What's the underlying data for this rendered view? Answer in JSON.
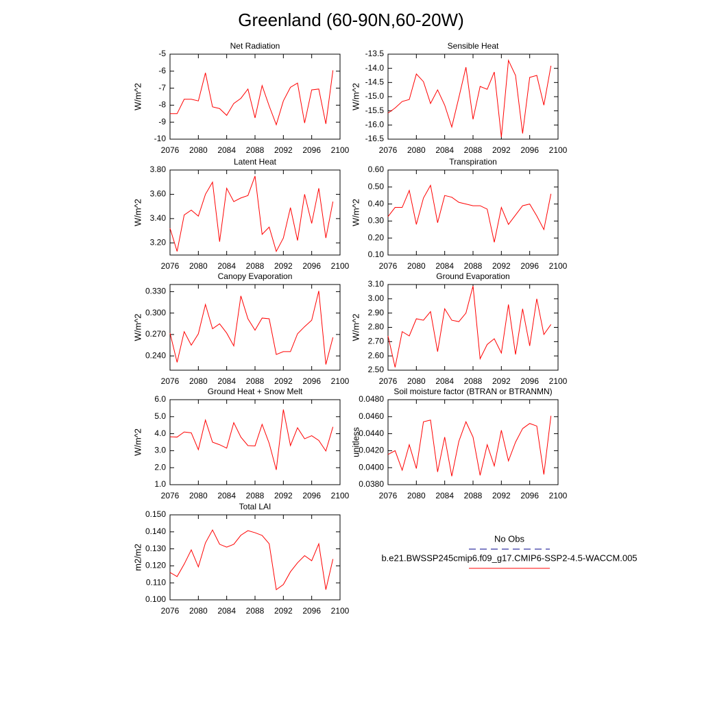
{
  "title": "Greenland (60-90N,60-20W)",
  "legend": [
    {
      "name": "No Obs",
      "color": "#00008b",
      "dashed": true
    },
    {
      "name": "b.e21.BWSSP245cmip6.f09_g17.CMIP6-SSP2-4.5-WACCM.005",
      "color": "#ff0000",
      "dashed": false
    }
  ],
  "chart_data": [
    {
      "type": "line",
      "title": "Net Radiation",
      "ylabel": "W/m^2",
      "color": "#ff0000",
      "x": [
        2076,
        2077,
        2078,
        2079,
        2080,
        2081,
        2082,
        2083,
        2084,
        2085,
        2086,
        2087,
        2088,
        2089,
        2090,
        2091,
        2092,
        2093,
        2094,
        2095,
        2096,
        2097,
        2098,
        2099
      ],
      "values": [
        -8.5,
        -8.5,
        -7.65,
        -7.65,
        -7.75,
        -6.1,
        -8.1,
        -8.2,
        -8.6,
        -7.9,
        -7.6,
        -7.05,
        -8.75,
        -6.85,
        -8.05,
        -9.15,
        -7.75,
        -6.95,
        -6.7,
        -9.05,
        -7.1,
        -7.05,
        -9.1,
        -5.95
      ],
      "xlim": [
        2076,
        2100
      ],
      "xticks": [
        2076,
        2080,
        2084,
        2088,
        2092,
        2096,
        2100
      ],
      "ylim": [
        -10,
        -5
      ],
      "yticks": [
        -10,
        -9,
        -8,
        -7,
        -6,
        -5
      ]
    },
    {
      "type": "line",
      "title": "Sensible Heat",
      "ylabel": "W/m^2",
      "color": "#ff0000",
      "x": [
        2076,
        2077,
        2078,
        2079,
        2080,
        2081,
        2082,
        2083,
        2084,
        2085,
        2086,
        2087,
        2088,
        2089,
        2090,
        2091,
        2092,
        2093,
        2094,
        2095,
        2096,
        2097,
        2098,
        2099
      ],
      "values": [
        -15.58,
        -15.4,
        -15.17,
        -15.1,
        -14.2,
        -14.47,
        -15.24,
        -14.76,
        -15.3,
        -16.07,
        -15.03,
        -13.96,
        -15.8,
        -14.64,
        -14.74,
        -14.13,
        -16.43,
        -13.72,
        -14.25,
        -16.3,
        -14.32,
        -14.25,
        -15.3,
        -13.91
      ],
      "xlim": [
        2076,
        2100
      ],
      "xticks": [
        2076,
        2080,
        2084,
        2088,
        2092,
        2096,
        2100
      ],
      "ylim": [
        -16.5,
        -13.5
      ],
      "yticks": [
        {
          "value": -16.5,
          "label": "-16.5"
        },
        {
          "value": -16,
          "label": "-16.0"
        },
        {
          "value": -15.5,
          "label": "-15.5"
        },
        {
          "value": -15,
          "label": "-15.0"
        },
        {
          "value": -14.5,
          "label": "-14.5"
        },
        {
          "value": -14,
          "label": "-14.0"
        },
        {
          "value": -13.5,
          "label": "-13.5"
        }
      ]
    },
    {
      "type": "line",
      "title": "Latent Heat",
      "ylabel": "W/m^2",
      "color": "#ff0000",
      "x": [
        2076,
        2077,
        2078,
        2079,
        2080,
        2081,
        2082,
        2083,
        2084,
        2085,
        2086,
        2087,
        2088,
        2089,
        2090,
        2091,
        2092,
        2093,
        2094,
        2095,
        2096,
        2097,
        2098,
        2099
      ],
      "values": [
        3.32,
        3.13,
        3.43,
        3.47,
        3.42,
        3.6,
        3.7,
        3.21,
        3.65,
        3.54,
        3.57,
        3.59,
        3.75,
        3.27,
        3.33,
        3.13,
        3.24,
        3.49,
        3.22,
        3.6,
        3.36,
        3.65,
        3.24,
        3.54
      ],
      "xlim": [
        2076,
        2100
      ],
      "xticks": [
        2076,
        2080,
        2084,
        2088,
        2092,
        2096,
        2100
      ],
      "ylim": [
        3.1,
        3.8
      ],
      "yticks": [
        {
          "value": 3.2,
          "label": "3.20"
        },
        {
          "value": 3.4,
          "label": "3.40"
        },
        {
          "value": 3.6,
          "label": "3.60"
        },
        {
          "value": 3.8,
          "label": "3.80"
        }
      ]
    },
    {
      "type": "line",
      "title": "Transpiration",
      "ylabel": "W/m^2",
      "color": "#ff0000",
      "x": [
        2076,
        2077,
        2078,
        2079,
        2080,
        2081,
        2082,
        2083,
        2084,
        2085,
        2086,
        2087,
        2088,
        2089,
        2090,
        2091,
        2092,
        2093,
        2094,
        2095,
        2096,
        2097,
        2098,
        2099
      ],
      "values": [
        0.326,
        0.38,
        0.38,
        0.48,
        0.28,
        0.435,
        0.51,
        0.29,
        0.45,
        0.44,
        0.41,
        0.4,
        0.39,
        0.39,
        0.37,
        0.175,
        0.38,
        0.28,
        0.335,
        0.39,
        0.4,
        0.33,
        0.25,
        0.46
      ],
      "xlim": [
        2076,
        2100
      ],
      "xticks": [
        2076,
        2080,
        2084,
        2088,
        2092,
        2096,
        2100
      ],
      "ylim": [
        0.1,
        0.6
      ],
      "yticks": [
        {
          "value": 0.1,
          "label": "0.10"
        },
        {
          "value": 0.2,
          "label": "0.20"
        },
        {
          "value": 0.3,
          "label": "0.30"
        },
        {
          "value": 0.4,
          "label": "0.40"
        },
        {
          "value": 0.5,
          "label": "0.50"
        },
        {
          "value": 0.6,
          "label": "0.60"
        }
      ]
    },
    {
      "type": "line",
      "title": "Canopy Evaporation",
      "ylabel": "W/m^2",
      "color": "#ff0000",
      "x": [
        2076,
        2077,
        2078,
        2079,
        2080,
        2081,
        2082,
        2083,
        2084,
        2085,
        2086,
        2087,
        2088,
        2089,
        2090,
        2091,
        2092,
        2093,
        2094,
        2095,
        2096,
        2097,
        2098,
        2099
      ],
      "values": [
        0.272,
        0.231,
        0.274,
        0.255,
        0.271,
        0.312,
        0.278,
        0.285,
        0.272,
        0.254,
        0.324,
        0.292,
        0.276,
        0.293,
        0.292,
        0.242,
        0.246,
        0.246,
        0.271,
        0.281,
        0.29,
        0.331,
        0.228,
        0.266
      ],
      "xlim": [
        2076,
        2100
      ],
      "xticks": [
        2076,
        2080,
        2084,
        2088,
        2092,
        2096,
        2100
      ],
      "ylim": [
        0.22,
        0.34
      ],
      "yticks": [
        {
          "value": 0.24,
          "label": "0.240"
        },
        {
          "value": 0.27,
          "label": "0.270"
        },
        {
          "value": 0.3,
          "label": "0.300"
        },
        {
          "value": 0.33,
          "label": "0.330"
        }
      ]
    },
    {
      "type": "line",
      "title": "Ground Evaporation",
      "ylabel": "W/m^2",
      "color": "#ff0000",
      "x": [
        2076,
        2077,
        2078,
        2079,
        2080,
        2081,
        2082,
        2083,
        2084,
        2085,
        2086,
        2087,
        2088,
        2089,
        2090,
        2091,
        2092,
        2093,
        2094,
        2095,
        2096,
        2097,
        2098,
        2099
      ],
      "values": [
        2.74,
        2.52,
        2.77,
        2.74,
        2.86,
        2.85,
        2.91,
        2.63,
        2.93,
        2.85,
        2.84,
        2.9,
        3.09,
        2.58,
        2.68,
        2.72,
        2.62,
        2.96,
        2.61,
        2.93,
        2.67,
        3.0,
        2.75,
        2.82
      ],
      "xlim": [
        2076,
        2100
      ],
      "xticks": [
        2076,
        2080,
        2084,
        2088,
        2092,
        2096,
        2100
      ],
      "ylim": [
        2.5,
        3.1
      ],
      "yticks": [
        {
          "value": 2.5,
          "label": "2.50"
        },
        {
          "value": 2.6,
          "label": "2.60"
        },
        {
          "value": 2.7,
          "label": "2.70"
        },
        {
          "value": 2.8,
          "label": "2.80"
        },
        {
          "value": 2.9,
          "label": "2.90"
        },
        {
          "value": 3.0,
          "label": "3.00"
        },
        {
          "value": 3.1,
          "label": "3.10"
        }
      ]
    },
    {
      "type": "line",
      "title": "Ground Heat + Snow Melt",
      "ylabel": "W/m^2",
      "color": "#ff0000",
      "x": [
        2076,
        2077,
        2078,
        2079,
        2080,
        2081,
        2082,
        2083,
        2084,
        2085,
        2086,
        2087,
        2088,
        2089,
        2090,
        2091,
        2092,
        2093,
        2094,
        2095,
        2096,
        2097,
        2098,
        2099
      ],
      "values": [
        3.82,
        3.8,
        4.1,
        4.05,
        3.06,
        4.8,
        3.5,
        3.35,
        3.15,
        4.65,
        3.8,
        3.3,
        3.28,
        4.55,
        3.43,
        1.87,
        5.42,
        3.3,
        4.35,
        3.7,
        3.88,
        3.6,
        2.98,
        4.4
      ],
      "xlim": [
        2076,
        2100
      ],
      "xticks": [
        2076,
        2080,
        2084,
        2088,
        2092,
        2096,
        2100
      ],
      "ylim": [
        1,
        6
      ],
      "yticks": [
        {
          "value": 1,
          "label": "1.0"
        },
        {
          "value": 2,
          "label": "2.0"
        },
        {
          "value": 3,
          "label": "3.0"
        },
        {
          "value": 4,
          "label": "4.0"
        },
        {
          "value": 5,
          "label": "5.0"
        },
        {
          "value": 6,
          "label": "6.0"
        }
      ]
    },
    {
      "type": "line",
      "title": "Soil moisture factor (BTRAN or BTRANMN)",
      "ylabel": "unitless",
      "color": "#ff0000",
      "x": [
        2076,
        2077,
        2078,
        2079,
        2080,
        2081,
        2082,
        2083,
        2084,
        2085,
        2086,
        2087,
        2088,
        2089,
        2090,
        2091,
        2092,
        2093,
        2094,
        2095,
        2096,
        2097,
        2098,
        2099
      ],
      "values": [
        0.04155,
        0.042,
        0.0397,
        0.0427,
        0.0399,
        0.0454,
        0.0456,
        0.0395,
        0.0436,
        0.039,
        0.0431,
        0.0454,
        0.0436,
        0.0391,
        0.0427,
        0.0402,
        0.0444,
        0.0408,
        0.043,
        0.0446,
        0.0452,
        0.0449,
        0.0392,
        0.0461
      ],
      "xlim": [
        2076,
        2100
      ],
      "xticks": [
        2076,
        2080,
        2084,
        2088,
        2092,
        2096,
        2100
      ],
      "ylim": [
        0.038,
        0.048
      ],
      "yticks": [
        {
          "value": 0.038,
          "label": "0.0380"
        },
        {
          "value": 0.04,
          "label": "0.0400"
        },
        {
          "value": 0.042,
          "label": "0.0420"
        },
        {
          "value": 0.044,
          "label": "0.0440"
        },
        {
          "value": 0.046,
          "label": "0.0460"
        },
        {
          "value": 0.048,
          "label": "0.0480"
        }
      ]
    },
    {
      "type": "line",
      "title": "Total LAI",
      "ylabel": "m2/m2",
      "color": "#ff0000",
      "x": [
        2076,
        2077,
        2078,
        2079,
        2080,
        2081,
        2082,
        2083,
        2084,
        2085,
        2086,
        2087,
        2088,
        2089,
        2090,
        2091,
        2092,
        2093,
        2094,
        2095,
        2096,
        2097,
        2098,
        2099
      ],
      "values": [
        0.1161,
        0.1137,
        0.121,
        0.1294,
        0.1194,
        0.1335,
        0.1411,
        0.1327,
        0.131,
        0.1327,
        0.138,
        0.1407,
        0.1395,
        0.1379,
        0.133,
        0.106,
        0.109,
        0.1165,
        0.1218,
        0.126,
        0.123,
        0.133,
        0.106,
        0.124
      ],
      "xlim": [
        2076,
        2100
      ],
      "xticks": [
        2076,
        2080,
        2084,
        2088,
        2092,
        2096,
        2100
      ],
      "ylim": [
        0.1,
        0.15
      ],
      "yticks": [
        {
          "value": 0.1,
          "label": "0.100"
        },
        {
          "value": 0.11,
          "label": "0.110"
        },
        {
          "value": 0.12,
          "label": "0.120"
        },
        {
          "value": 0.13,
          "label": "0.130"
        },
        {
          "value": 0.14,
          "label": "0.140"
        },
        {
          "value": 0.15,
          "label": "0.150"
        }
      ]
    }
  ]
}
